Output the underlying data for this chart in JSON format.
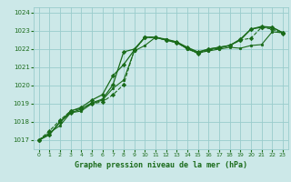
{
  "background_color": "#cce8e8",
  "grid_color": "#99cccc",
  "line_color": "#1a6b1a",
  "xlabel": "Graphe pression niveau de la mer (hPa)",
  "xlim": [
    -0.5,
    23.5
  ],
  "ylim": [
    1016.5,
    1024.3
  ],
  "yticks": [
    1017,
    1018,
    1019,
    1020,
    1021,
    1022,
    1023,
    1024
  ],
  "xticks": [
    0,
    1,
    2,
    3,
    4,
    5,
    6,
    7,
    8,
    9,
    10,
    11,
    12,
    13,
    14,
    15,
    16,
    17,
    18,
    19,
    20,
    21,
    22,
    23
  ],
  "series": [
    {
      "y": [
        1017.0,
        1017.4,
        1017.8,
        1018.5,
        1018.6,
        1019.0,
        1019.2,
        1019.85,
        1020.3,
        1021.9,
        1022.2,
        1022.65,
        1022.55,
        1022.4,
        1022.0,
        1021.8,
        1021.9,
        1022.0,
        1022.1,
        1022.05,
        1022.2,
        1022.25,
        1022.95,
        1022.9
      ],
      "marker": "o",
      "ms": 1.8,
      "lw": 0.8,
      "ls": "-",
      "mfc": "#1a6b1a"
    },
    {
      "y": [
        1017.0,
        1017.3,
        1018.0,
        1018.5,
        1018.7,
        1019.05,
        1019.25,
        1020.05,
        1021.85,
        1022.0,
        1022.65,
        1022.65,
        1022.5,
        1022.4,
        1022.1,
        1021.85,
        1022.0,
        1022.1,
        1022.2,
        1022.5,
        1023.1,
        1023.2,
        1023.2,
        1022.9
      ],
      "marker": "D",
      "ms": 2.2,
      "lw": 0.9,
      "ls": "-",
      "mfc": "#1a6b1a"
    },
    {
      "y": [
        1017.0,
        1017.3,
        1018.0,
        1018.6,
        1018.8,
        1019.2,
        1019.5,
        1020.55,
        1021.15,
        1021.95,
        1022.65,
        1022.65,
        1022.5,
        1022.35,
        1022.05,
        1021.8,
        1022.0,
        1022.1,
        1022.2,
        1022.55,
        1023.1,
        1023.25,
        1023.2,
        1022.9
      ],
      "marker": "D",
      "ms": 2.2,
      "lw": 0.9,
      "ls": "-",
      "mfc": "#1a6b1a"
    },
    {
      "y": [
        1017.0,
        1017.5,
        1018.1,
        1018.6,
        1018.75,
        1019.0,
        1019.1,
        1019.5,
        1020.05,
        1021.95,
        1022.65,
        1022.65,
        1022.5,
        1022.35,
        1022.05,
        1021.75,
        1021.95,
        1022.05,
        1022.2,
        1022.5,
        1022.6,
        1023.2,
        1023.1,
        1022.85
      ],
      "marker": "D",
      "ms": 2.2,
      "lw": 0.8,
      "ls": "--",
      "mfc": "#1a6b1a"
    }
  ]
}
